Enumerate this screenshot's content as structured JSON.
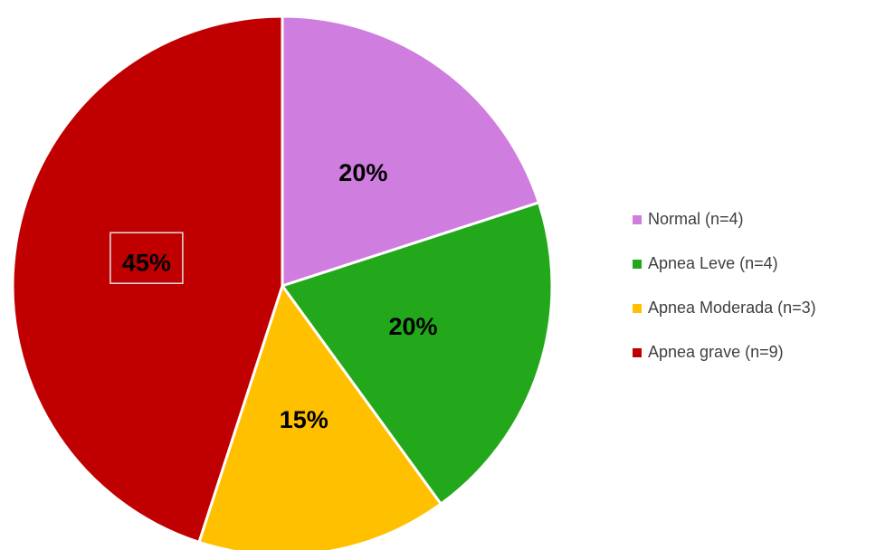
{
  "chart_data": {
    "type": "pie",
    "categories": [
      "Normal (n=4)",
      "Apnea Leve (n=4)",
      "Apnea Moderada (n=3)",
      "Apnea grave (n=9)"
    ],
    "values": [
      20,
      20,
      15,
      45
    ],
    "value_labels": [
      "20%",
      "20%",
      "15%",
      "45%"
    ],
    "colors": [
      "#cf7ddf",
      "#22a81a",
      "#ffc000",
      "#c00000"
    ],
    "legend": "right"
  }
}
